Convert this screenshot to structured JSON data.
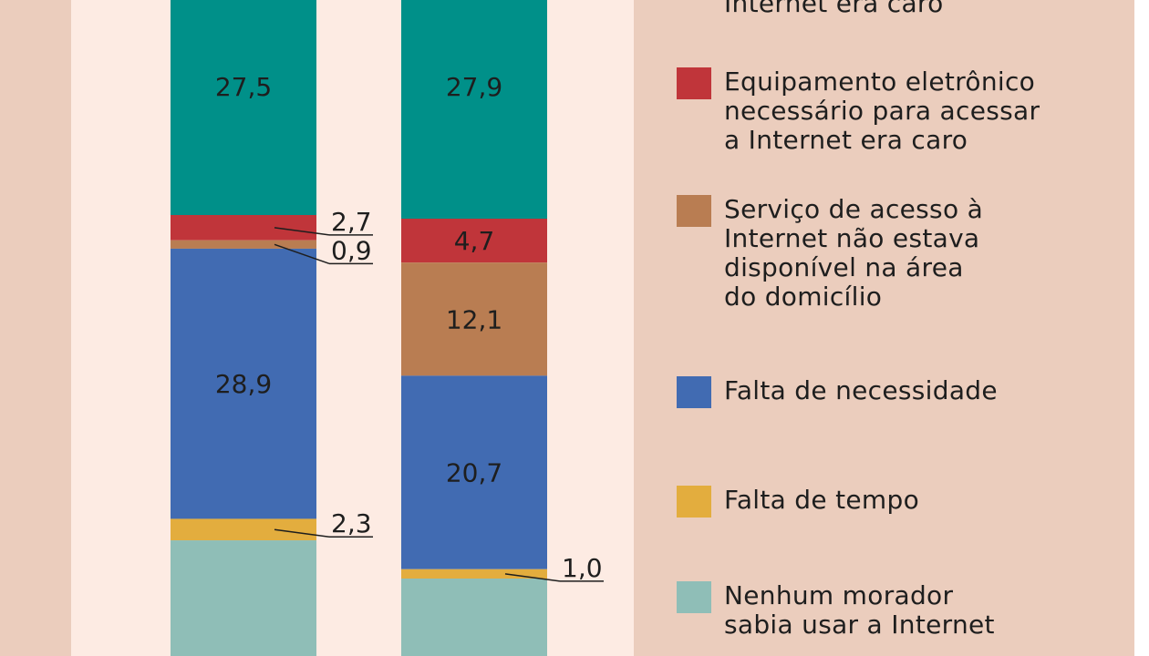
{
  "chart_data": {
    "type": "stacked-bar",
    "bars": [
      "bar-1",
      "bar-2"
    ],
    "series": [
      {
        "key": "cost-internet",
        "name": "Serviço de acesso à Internet era caro",
        "color": "#009089",
        "values": [
          27.5,
          27.9
        ]
      },
      {
        "key": "cost-equipment",
        "name": "Equipamento eletrônico necessário para acessar a Internet era caro",
        "color": "#c0353a",
        "values": [
          2.7,
          4.7
        ]
      },
      {
        "key": "unavailable",
        "name": "Serviço de acesso à Internet não estava disponível na área do domicílio",
        "color": "#b97d52",
        "values": [
          0.9,
          12.1
        ]
      },
      {
        "key": "no-need",
        "name": "Falta de necessidade",
        "color": "#416bb2",
        "values": [
          28.9,
          20.7
        ]
      },
      {
        "key": "no-time",
        "name": "Falta de tempo",
        "color": "#e3ad3e",
        "values": [
          2.3,
          1.0
        ]
      },
      {
        "key": "no-skill",
        "name": "Nenhum morador sabia usar a Internet",
        "color": "#8fbeb7",
        "values": [
          null,
          null
        ]
      }
    ],
    "value_labels": [
      [
        "27,5",
        "2,7",
        "0,9",
        "28,9",
        "2,3"
      ],
      [
        "27,9",
        "4,7",
        "12,1",
        "20,7",
        "1,0"
      ]
    ]
  },
  "legend": [
    {
      "key": "cost-internet",
      "color": "#009089",
      "label": "Internet era caro",
      "partial": true
    },
    {
      "key": "cost-equipment",
      "color": "#c0353a",
      "label": "Equipamento eletrônico\nnecessário para acessar\na Internet era caro"
    },
    {
      "key": "unavailable",
      "color": "#b97d52",
      "label": "Serviço de acesso à\nInternet não estava\ndisponível na área\ndo domicílio"
    },
    {
      "key": "no-need",
      "color": "#416bb2",
      "label": "Falta de necessidade"
    },
    {
      "key": "no-time",
      "color": "#e3ad3e",
      "label": "Falta de tempo"
    },
    {
      "key": "no-skill",
      "color": "#8fbeb7",
      "label": "Nenhum morador\nsabia usar a Internet"
    }
  ]
}
